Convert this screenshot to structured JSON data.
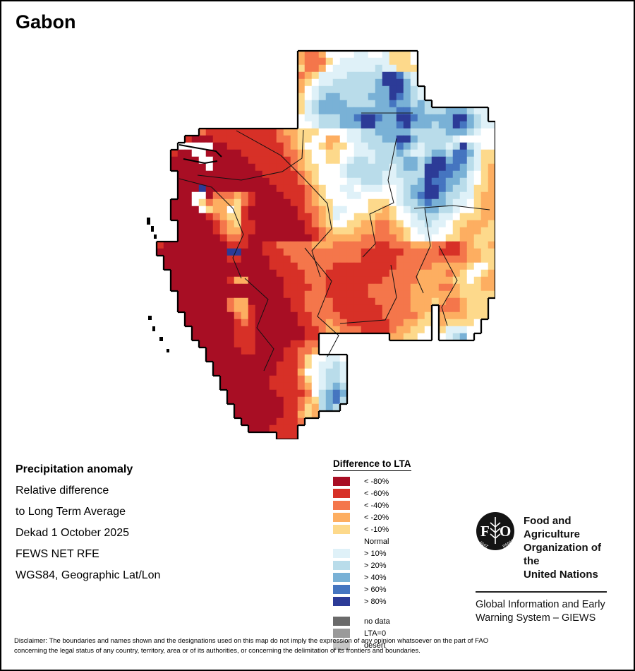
{
  "title": "Gabon",
  "info": {
    "lines": [
      {
        "text": "Precipitation anomaly",
        "bold": true
      },
      {
        "text": "Relative difference",
        "bold": false
      },
      {
        "text": "to Long Term Average",
        "bold": false
      },
      {
        "text": "Dekad 1 October 2025",
        "bold": false
      },
      {
        "text": "FEWS NET RFE",
        "bold": false
      },
      {
        "text": "WGS84, Geographic Lat/Lon",
        "bold": false
      }
    ]
  },
  "legend": {
    "title": "Difference to LTA",
    "items": [
      {
        "label": "< -80%",
        "color": "#A80E24"
      },
      {
        "label": "< -60%",
        "color": "#D73027"
      },
      {
        "label": "< -40%",
        "color": "#F4764B"
      },
      {
        "label": "< -20%",
        "color": "#FDAE61"
      },
      {
        "label": "< -10%",
        "color": "#FDD98B"
      },
      {
        "label": "Normal",
        "color": null
      },
      {
        "label": "> 10%",
        "color": "#DFF1F8"
      },
      {
        "label": "> 20%",
        "color": "#B9DCEA"
      },
      {
        "label": "> 40%",
        "color": "#79B1D6"
      },
      {
        "label": "> 60%",
        "color": "#4575C0"
      },
      {
        "label": "> 80%",
        "color": "#2C3B97"
      }
    ],
    "extra_items": [
      {
        "label": "no data",
        "color": "#6A6A6A"
      },
      {
        "label": "LTA=0",
        "color": "#9A9A9A"
      },
      {
        "label": "desert",
        "color": "#C6C6C6"
      }
    ]
  },
  "fao": {
    "org_lines": [
      "Food and Agriculture",
      "Organization of the",
      "United Nations"
    ],
    "giews_lines": [
      "Global Information and Early",
      "Warning System – GIEWS"
    ],
    "logo_letters": [
      "F",
      "O"
    ],
    "logo_motto": [
      "FIAT",
      "PANIS"
    ]
  },
  "disclaimer": {
    "line1": "Disclaimer: The boundaries and names shown and the designations used on this map do not imply the expression of any opinion whatsoever on the part of FAO",
    "line2": "concerning the legal status of any country, territory, area or of its authorities, or concerning the delimitation of its frontiers and boundaries."
  },
  "map": {
    "cell_size": 10,
    "palette": {
      "A": "#A80E24",
      "B": "#D73027",
      "C": "#F4764B",
      "D": "#FDAE61",
      "E": "#FDD98B",
      "F": "#FFFFFF",
      "G": "#DFF1F8",
      "H": "#B9DCEA",
      "I": "#79B1D6",
      "J": "#4575C0",
      "K": "#2C3B97"
    },
    "rows": [
      "..................................................",
      "......................DCCDFFFFGGFFGEEEF...........",
      "......................DCCCEFGGGGGGGEEEF...........",
      "......................ECCDFGGGGGGHGGEEE...........",
      "......................CDEGGGGHHHHHKKJHG...........",
      "......................DEFGGHHHHHHIKKKIG...........",
      "......................DFGHHHHHHHHIIKKIHG..........",
      "......................EFGHIIHHHHIIIKJIHG..........",
      "......................EGHIIIIHHHHIIJIIHIH.........",
      "......................EGHIIIIIIIIIIIJJIIHHHIIIHGG.",
      "......................FGGHHHIIJKKJIIKKJIIIIIKKIHG.",
      "......................FFGHHHIIIKKIIIJKIIIHIIKJIHGG",
      "........CBBBBBBBBBBCDDEEEFFFFGGHHIIIIIHHHHHIIIHGFF",
      "......BAAABBBBBBBBBCCDEEFFDDFGGHHHIIKKIHHHHHGFFFFF",
      ".....FFFFFAABBBBBBBBCDEFFEDEEFGGHHHHJIHGHHHGHKHGFF",
      "....BAAFFAAAAABBBBBBCCDEFFEEFFGGGHHHIHGGHIIHJJIGEE",
      "....AAAAFFAAAAABBBBBBCDEFFEEFGHHGHHHHIIHIKKIJJHGEE",
      "....AAAAAFAAAAAABBBBBCDEEFFFGHHHHHHGHIIHKKKJJIHGED",
      ".....AAAAAAAAAAAABBBBBCDEFFFGHHHHHGGHHHHKKJJIIGFED",
      ".....AAAAAAAAAAAAABBBBCDEFFFFGGHHHGGGHHIKJJIIHGFED",
      ".....AAAKAAAAAAAAAABBBBCDEFFGGFGGGFFGHIIKKJIHHGEED",
      ".....AAFFACCCDCBAAAABBBCDEFFFGGFFFFFGHIJKKIHHGGEDD",
      "....AAAFECDDDECBAAAAABBCDEEFFFFFEEEFGHHIJIIHGGFEDD",
      "....AAAAFEDDFEBAAAAAAABCCDEGGFFFEEDEFGHHIIHHGFFEDD",
      "....AAAAABCDEEBAAAAAAABBCDEGFFEEEDDEFFGHHHGGFEEEDD",
      ".....AAAAABCDEBBAAAAAAABCDEFFEEDDCCDEFGGHGGFEEDDDE",
      ".....AAAAABCDDBBAAAAAAABBCDEEEDDDCCDDEFGGGFFEDDDEE",
      ".....AAAAAABCCBAAAAAAAAABCDDDDDCCCCCDEFFGFFEEDDEEE",
      "..BAAAAAAAAABBBAABBCCCCCDDDCCCCCCBBCCCDDDCCBBCDEED",
      "..AAAAAAAAAAKKAAABBBCCCCCCCCCCCBBBBBBCCCCCBBBCDDEE",
      "...AAAAAAAAABBAAAABBBCCCCCCCCCCBBBBBCCCCCCCCCCDDEE",
      "...AAAAAAAAAAAAAAABBBBCCCCCBBBBBBBBBCCCCCDDDDDEFFE",
      "....AAAAAAAAAAAAAAABBBBCCCBBBBBBBBBCCCCDDDDCDEFFED",
      "....AAAAAAAABDDAAAAABBBCCCBBBBBBBBCCCCCDDDDDEEFEDD",
      "....AAAAAAAAAAAAAAAABBBBCCBBBBBBCCCCCCDDDDCCDEEEDD",
      ".....AAAAAAAAAAAAAAABBBCCCBBBBBBCCCCCCDDDDDDDEEEEE",
      ".....AAAAAAACDDAAAAAABBCCCCBBBBBBCCCCCDDDEDCCDEEE.",
      ".....AAAAAAACDDBAAAAABBCCCCBBBBBBBCCCCDDD.CCCDEEE.",
      "......AAAAAAACDBAAAAAABBCCCCBBBBBBCCCCCDE.DDDDEEE.",
      "......AAAAAAABCBAAAAAABBCCDCCBBBBBBCCDDEE.DEEEEF..",
      ".......AAAAAABBBAAAAAAABBCDDCCCBBBBCDDEEF.EGGGFF..",
      ".......AAAAAABBBAAAAAAABB..........DDEEFF.FGHIF...",
      "........AAAAABBBAAAAABBCC.........................",
      ".........AAAAABBAAAABBCCD.........................",
      ".........AAAAAAAAAAABBCEFFGGF.....................",
      "..........AAAAAAAAABBBCEFGGHG.....................",
      "..........AAAAAAAAABBBDFFGHHG.....................",
      "...........AAAAAAABBBBCEFGHHG.....................",
      "...........AAAAAAABBBBCDFGHIH.....................",
      "............AAAAAAABBBBCFHIJI.....................",
      "............AAAAAAAABBCDEHIJH.....................",
      ".............AAAAAAABBCEDHIH......................",
      ".............AAAAAAABBDED.........................",
      "..............AAAAABBBC...........................",
      "...............AAABBBB............................",
      "...................BBB............................"
    ],
    "admin_lines": [
      [
        [
          310,
          98
        ],
        [
          383,
          98
        ]
      ],
      [
        [
          78,
          186
        ],
        [
          140,
          193
        ],
        [
          198,
          181
        ],
        [
          226,
          162
        ],
        [
          228,
          122
        ]
      ],
      [
        [
          133,
          123
        ],
        [
          196,
          158
        ],
        [
          230,
          192
        ],
        [
          262,
          226
        ],
        [
          268,
          262
        ],
        [
          240,
          293
        ],
        [
          252,
          330
        ]
      ],
      [
        [
          52,
          191
        ],
        [
          98,
          203
        ],
        [
          128,
          233
        ],
        [
          143,
          270
        ],
        [
          128,
          303
        ],
        [
          140,
          332
        ]
      ],
      [
        [
          360,
          134
        ],
        [
          348,
          193
        ],
        [
          356,
          225
        ],
        [
          322,
          241
        ],
        [
          330,
          283
        ],
        [
          312,
          302
        ]
      ],
      [
        [
          385,
          233
        ],
        [
          440,
          229
        ],
        [
          492,
          235
        ]
      ],
      [
        [
          400,
          233
        ],
        [
          408,
          286
        ],
        [
          388,
          330
        ],
        [
          398,
          353
        ]
      ],
      [
        [
          230,
          289
        ],
        [
          268,
          336
        ],
        [
          248,
          386
        ],
        [
          278,
          413
        ],
        [
          262,
          443
        ]
      ],
      [
        [
          420,
          286
        ],
        [
          446,
          335
        ],
        [
          424,
          373
        ],
        [
          432,
          399
        ]
      ],
      [
        [
          280,
          396
        ],
        [
          344,
          391
        ],
        [
          360,
          359
        ],
        [
          352,
          313
        ]
      ],
      [
        [
          145,
          332
        ],
        [
          178,
          362
        ],
        [
          162,
          402
        ],
        [
          186,
          432
        ],
        [
          172,
          463
        ]
      ]
    ],
    "coast_detail": [
      [
        [
          52,
          143
        ],
        [
          80,
          148
        ],
        [
          104,
          152
        ],
        [
          112,
          160
        ]
      ],
      [
        [
          58,
          163
        ],
        [
          88,
          169
        ],
        [
          106,
          166
        ]
      ]
    ],
    "islands": [
      [
        6,
        246,
        5,
        10
      ],
      [
        12,
        258,
        4,
        8
      ],
      [
        16,
        270,
        4,
        6
      ],
      [
        8,
        385,
        5,
        6
      ],
      [
        14,
        400,
        4,
        7
      ],
      [
        24,
        415,
        5,
        6
      ],
      [
        34,
        432,
        4,
        5
      ]
    ]
  }
}
